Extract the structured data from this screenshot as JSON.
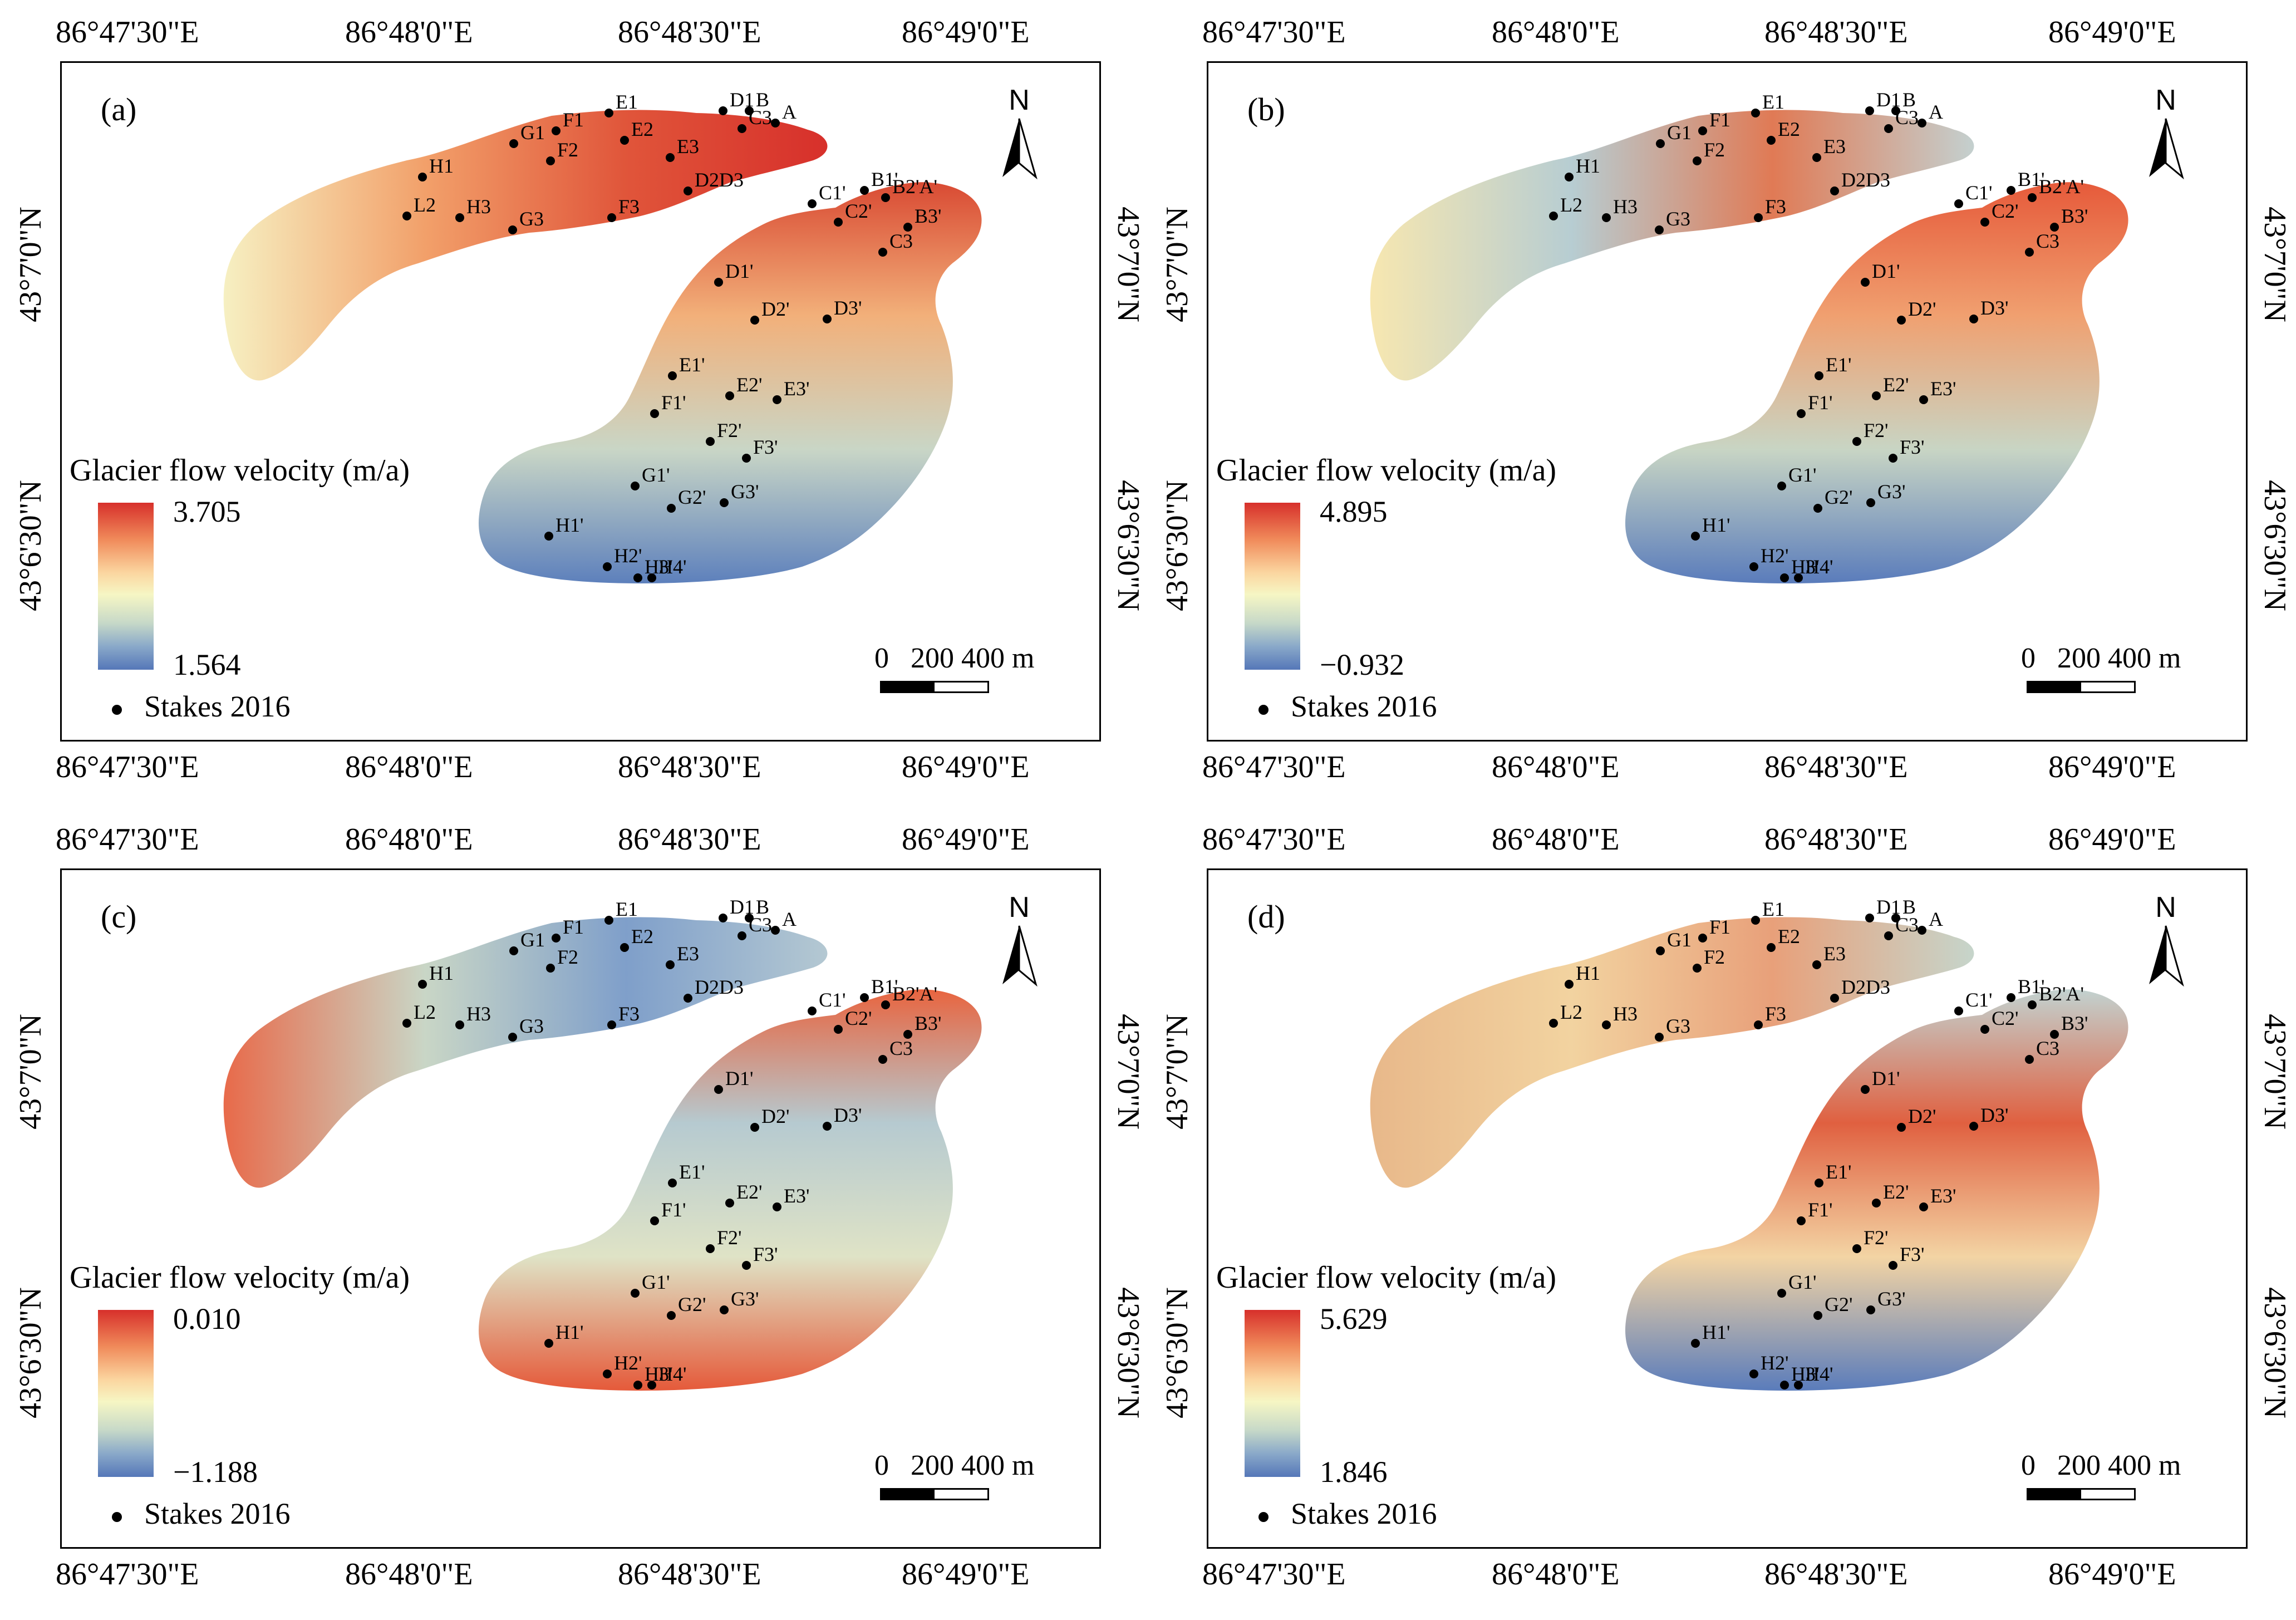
{
  "coords": {
    "lon": [
      "86°47'30\"E",
      "86°48'0\"E",
      "86°48'30\"E",
      "86°49'0\"E"
    ],
    "lat_top": "43°7'0\"N",
    "lat_bottom": "43°6'30\"N"
  },
  "north_label": "N",
  "legend_title": "Glacier flow velocity (m/a)",
  "stakes_label": "Stakes 2016",
  "scale": [
    "0",
    "200",
    "400",
    "m"
  ],
  "panels": [
    {
      "label": "(a)",
      "max": "3.705",
      "min": "1.564"
    },
    {
      "label": "(b)",
      "max": "4.895",
      "min": "−0.932"
    },
    {
      "label": "(c)",
      "max": "0.010",
      "min": "−1.188"
    },
    {
      "label": "(d)",
      "max": "5.629",
      "min": "1.846"
    }
  ],
  "stakes_west": [
    "D1",
    "B",
    "A",
    "C3",
    "E1",
    "F1",
    "G1",
    "H1",
    "F2",
    "E2",
    "E3",
    "F3",
    "D2D3",
    "L2",
    "H3",
    "G3"
  ],
  "stakes_east": [
    "C1'",
    "B1'",
    "B2'A'",
    "C2'",
    "B3'",
    "C3",
    "D1'",
    "D2'",
    "D3'",
    "E1'",
    "E2'",
    "E3'",
    "F1'",
    "F2'",
    "F3'",
    "G1'",
    "G2'",
    "G3'",
    "H1'",
    "H2'",
    "H3'",
    "H4'"
  ],
  "colors": {
    "high": "#d7302b",
    "mid": "#f6f6c4",
    "low": "#5577b8"
  }
}
